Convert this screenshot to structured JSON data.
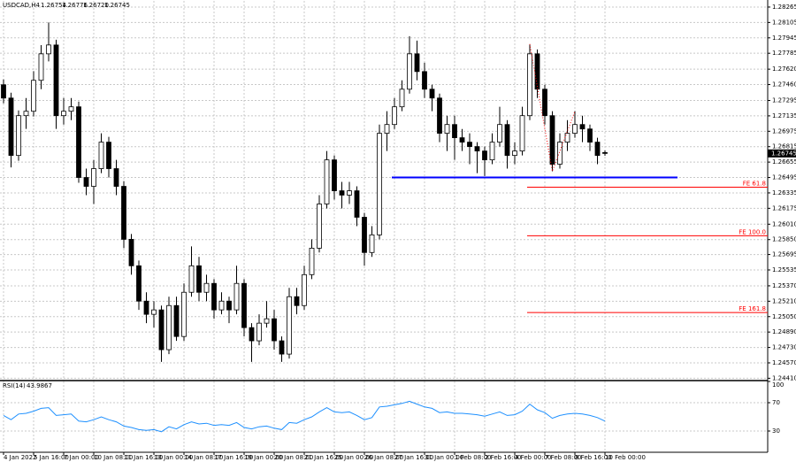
{
  "chart_data": {
    "type": "candlestick",
    "symbol": "USDCAD,H4",
    "header_labels": [
      "1.26754",
      "1.26776",
      "1.26720",
      "1.26745"
    ],
    "up_color": "#ffffff",
    "down_color": "#000000",
    "grid": true,
    "ylim": [
      1.24386,
      1.28329
    ],
    "yticks": [
      1.28265,
      1.28105,
      1.27945,
      1.27785,
      {
        "value": 1.2762,
        "label": "1.27620"
      },
      {
        "value": 1.2746,
        "label": "1.27460"
      },
      1.27295,
      1.27135,
      1.26975,
      1.26815,
      1.26655,
      1.26495,
      1.26335,
      1.26175,
      {
        "value": 1.2601,
        "label": "1.26010"
      },
      {
        "value": 1.2585,
        "label": "1.25850"
      },
      1.25695,
      1.25535,
      {
        "value": 1.2537,
        "label": "1.25370"
      },
      {
        "value": 1.2521,
        "label": "1.25210"
      },
      {
        "value": 1.2505,
        "label": "1.25050"
      },
      {
        "value": 1.2489,
        "label": "1.24890"
      },
      {
        "value": 1.2473,
        "label": "1.24730"
      },
      {
        "value": 1.2457,
        "label": "1.24570"
      },
      {
        "value": 1.2441,
        "label": "1.24410"
      }
    ],
    "categories": [
      "4 Jan 2022",
      null,
      null,
      null,
      "5 Jan 16:00",
      null,
      null,
      null,
      "7 Jan 00:00",
      null,
      null,
      null,
      "10 Jan 08:00",
      null,
      null,
      null,
      "11 Jan 16:00",
      null,
      null,
      null,
      "13 Jan 00:00",
      null,
      null,
      null,
      "14 Jan 08:00",
      null,
      null,
      null,
      "17 Jan 16:00",
      null,
      null,
      null,
      "19 Jan 00:00",
      null,
      null,
      null,
      "20 Jan 08:00",
      null,
      null,
      null,
      "21 Jan 16:00",
      null,
      null,
      null,
      "25 Jan 00:00",
      null,
      null,
      null,
      "26 Jan 08:00",
      null,
      null,
      null,
      "27 Jan 16:00",
      null,
      null,
      null,
      "31 Jan 00:00",
      null,
      null,
      null,
      "1 Feb 08:00",
      null,
      null,
      null,
      "2 Feb 16:00",
      null,
      null,
      null,
      "4 Feb 00:00",
      null,
      null,
      null,
      "7 Feb 08:00",
      null,
      null,
      null,
      "8 Feb 16:00",
      null,
      null,
      null,
      "10 Feb 00:00"
    ],
    "ohlc": [
      [
        1.27458,
        1.27513,
        1.27265,
        1.2732
      ],
      [
        1.2732,
        1.27375,
        1.266,
        1.26724
      ],
      [
        1.26724,
        1.27192,
        1.26669,
        1.27137
      ],
      [
        1.27137,
        1.2732,
        1.27,
        1.27183
      ],
      [
        1.27183,
        1.276,
        1.27128,
        1.27504
      ],
      [
        1.27504,
        1.2787,
        1.27412,
        1.27779
      ],
      [
        1.27779,
        1.28105,
        1.277,
        1.27871
      ],
      [
        1.27871,
        1.27926,
        1.27,
        1.27137
      ],
      [
        1.27137,
        1.2732,
        1.27045,
        1.27183
      ],
      [
        1.27183,
        1.2732,
        1.2709,
        1.27229
      ],
      [
        1.27229,
        1.27284,
        1.2644,
        1.26495
      ],
      [
        1.26495,
        1.26587,
        1.26312,
        1.26403
      ],
      [
        1.26403,
        1.26678,
        1.2622,
        1.26587
      ],
      [
        1.26587,
        1.26954,
        1.2654,
        1.26862
      ],
      [
        1.26862,
        1.26917,
        1.26495,
        1.26587
      ],
      [
        1.26587,
        1.26678,
        1.26312,
        1.26403
      ],
      [
        1.26403,
        1.26458,
        1.25761,
        1.25853
      ],
      [
        1.25853,
        1.25908,
        1.25486,
        1.25578
      ],
      [
        1.25578,
        1.25633,
        1.2512,
        1.25211
      ],
      [
        1.25211,
        1.25303,
        1.24982,
        1.25074
      ],
      [
        1.25074,
        1.25211,
        1.24936,
        1.2512
      ],
      [
        1.2512,
        1.25165,
        1.2458,
        1.24707
      ],
      [
        1.24707,
        1.25257,
        1.24661,
        1.25165
      ],
      [
        1.25165,
        1.25257,
        1.24799,
        1.24844
      ],
      [
        1.24844,
        1.25395,
        1.24799,
        1.25303
      ],
      [
        1.25303,
        1.2578,
        1.25257,
        1.25578
      ],
      [
        1.25578,
        1.2567,
        1.25211,
        1.25303
      ],
      [
        1.25303,
        1.25486,
        1.25211,
        1.25395
      ],
      [
        1.25395,
        1.2544,
        1.25028,
        1.2512
      ],
      [
        1.2512,
        1.25303,
        1.25074,
        1.25211
      ],
      [
        1.25211,
        1.25257,
        1.24982,
        1.2512
      ],
      [
        1.2512,
        1.25578,
        1.25074,
        1.25395
      ],
      [
        1.25395,
        1.2544,
        1.24844,
        1.24936
      ],
      [
        1.24936,
        1.24982,
        1.2458,
        1.24799
      ],
      [
        1.24799,
        1.25074,
        1.24753,
        1.24982
      ],
      [
        1.24982,
        1.25211,
        1.24936,
        1.25028
      ],
      [
        1.25028,
        1.2512,
        1.24707,
        1.24799
      ],
      [
        1.24799,
        1.24844,
        1.2458,
        1.24661
      ],
      [
        1.24661,
        1.25349,
        1.24615,
        1.25257
      ],
      [
        1.25257,
        1.25349,
        1.25074,
        1.25165
      ],
      [
        1.25165,
        1.25578,
        1.2512,
        1.25486
      ],
      [
        1.25486,
        1.25853,
        1.2544,
        1.25761
      ],
      [
        1.25761,
        1.26312,
        1.25716,
        1.2622
      ],
      [
        1.2622,
        1.2677,
        1.26174,
        1.26678
      ],
      [
        1.26678,
        1.26724,
        1.26266,
        1.26357
      ],
      [
        1.26357,
        1.26449,
        1.26174,
        1.26312
      ],
      [
        1.26312,
        1.26449,
        1.2622,
        1.26357
      ],
      [
        1.26357,
        1.26403,
        1.2599,
        1.26082
      ],
      [
        1.26082,
        1.26128,
        1.25578,
        1.25716
      ],
      [
        1.25716,
        1.2599,
        1.2567,
        1.25899
      ],
      [
        1.25899,
        1.27045,
        1.25853,
        1.26954
      ],
      [
        1.26954,
        1.27183,
        1.2677,
        1.27045
      ],
      [
        1.27045,
        1.2732,
        1.26999,
        1.27229
      ],
      [
        1.27229,
        1.27504,
        1.27183,
        1.27412
      ],
      [
        1.27412,
        1.27962,
        1.27366,
        1.27779
      ],
      [
        1.27779,
        1.27917,
        1.27504,
        1.27595
      ],
      [
        1.27595,
        1.27687,
        1.2732,
        1.27412
      ],
      [
        1.27412,
        1.27458,
        1.27183,
        1.2732
      ],
      [
        1.2732,
        1.27366,
        1.26862,
        1.26954
      ],
      [
        1.26954,
        1.27137,
        1.2677,
        1.27045
      ],
      [
        1.27045,
        1.27137,
        1.26678,
        1.26908
      ],
      [
        1.26908,
        1.26999,
        1.2677,
        1.26862
      ],
      [
        1.26862,
        1.26954,
        1.26633,
        1.26816
      ],
      [
        1.26816,
        1.26862,
        1.2654,
        1.2677
      ],
      [
        1.2677,
        1.26816,
        1.2651,
        1.26678
      ],
      [
        1.26678,
        1.26954,
        1.26633,
        1.26862
      ],
      [
        1.26862,
        1.27229,
        1.26816,
        1.27045
      ],
      [
        1.27045,
        1.27091,
        1.26587,
        1.26724
      ],
      [
        1.26724,
        1.26862,
        1.26633,
        1.2677
      ],
      [
        1.2677,
        1.27229,
        1.26724,
        1.27137
      ],
      [
        1.27137,
        1.2788,
        1.27091,
        1.27779
      ],
      [
        1.27779,
        1.27825,
        1.2732,
        1.27412
      ],
      [
        1.27412,
        1.27458,
        1.27045,
        1.27137
      ],
      [
        1.27137,
        1.27183,
        1.2656,
        1.26633
      ],
      [
        1.26633,
        1.26954,
        1.26587,
        1.26862
      ],
      [
        1.26862,
        1.27091,
        1.2677,
        1.26954
      ],
      [
        1.26954,
        1.27183,
        1.26908,
        1.27045
      ],
      [
        1.27045,
        1.27137,
        1.26862,
        1.26999
      ],
      [
        1.26999,
        1.27045,
        1.2677,
        1.26862
      ],
      [
        1.26862,
        1.26908,
        1.26633,
        1.26724
      ],
      [
        1.26754,
        1.26776,
        1.2672,
        1.26745
      ]
    ],
    "support": {
      "value": 1.26495,
      "color": "#0000ff"
    },
    "fibo": {
      "color": "#ff0000",
      "anchors": [
        70,
        73,
        76
      ],
      "levels": [
        {
          "label": "FE 61.8",
          "value": 1.26394
        },
        {
          "label": "FE 100.0",
          "value": 1.2589
        },
        {
          "label": "FE 161.8",
          "value": 1.25092
        }
      ]
    },
    "rsi": {
      "name": "RSI(14)",
      "color": "#1e90ff",
      "ylim": [
        0,
        100
      ],
      "yticks": [
        100,
        70,
        30
      ],
      "values": [
        52,
        46,
        54,
        55,
        58,
        62,
        63,
        52,
        53,
        54,
        44,
        43,
        46,
        50,
        46,
        43,
        37,
        35,
        32,
        31,
        32,
        29,
        36,
        33,
        39,
        43,
        40,
        41,
        38,
        39,
        38,
        42,
        35,
        33,
        36,
        37,
        34,
        32,
        42,
        41,
        46,
        50,
        57,
        63,
        57,
        56,
        57,
        52,
        46,
        49,
        64,
        65,
        67,
        69,
        72,
        68,
        64,
        62,
        56,
        57,
        55,
        55,
        54,
        53,
        51,
        54,
        57,
        52,
        53,
        58,
        68,
        60,
        56,
        48,
        52,
        54,
        55,
        54,
        52,
        49,
        43.9867
      ]
    }
  }
}
